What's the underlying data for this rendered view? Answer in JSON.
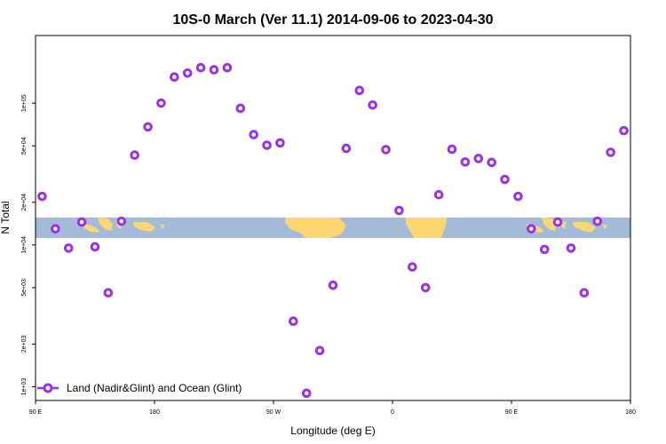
{
  "chart_data": {
    "type": "scatter",
    "title": "10S-0 March (Ver 11.1)   2014-09-06 to 2023-04-30",
    "xlabel": "Longitude (deg E)",
    "ylabel": "N Total",
    "x_scale": "linear",
    "y_scale": "log",
    "xlim": [
      90,
      540
    ],
    "ylim": [
      800,
      300000
    ],
    "x_ticks": [
      {
        "value": 90,
        "label": "90 E"
      },
      {
        "value": 180,
        "label": "180"
      },
      {
        "value": 270,
        "label": "90 W"
      },
      {
        "value": 360,
        "label": "0"
      },
      {
        "value": 450,
        "label": "90 E"
      },
      {
        "value": 540,
        "label": "180"
      }
    ],
    "y_ticks": [
      {
        "value": 1000,
        "label": "1e+03"
      },
      {
        "value": 2000,
        "label": "2e+03"
      },
      {
        "value": 5000,
        "label": "5e+03"
      },
      {
        "value": 10000,
        "label": "1e+04"
      },
      {
        "value": 20000,
        "label": "2e+04"
      },
      {
        "value": 50000,
        "label": "5e+04"
      },
      {
        "value": 100000,
        "label": "1e+05"
      }
    ],
    "map_band": {
      "lat_min": -10,
      "lat_max": 0,
      "ocean_color": "#a4bad9",
      "land_color": "#fcd670"
    },
    "legend": {
      "position": "bottom-left",
      "label": "Land (Nadir&Glint) and Ocean (Glint)"
    },
    "series": [
      {
        "name": "Land (Nadir&Glint) and Ocean (Glint)",
        "color": "#9b30e8",
        "marker": "open-circle",
        "x": [
          95,
          105,
          115,
          125,
          135,
          145,
          155,
          165,
          175,
          185,
          195,
          205,
          215,
          225,
          235,
          245,
          255,
          265,
          275,
          285,
          295,
          305,
          315,
          325,
          335,
          345,
          355,
          365,
          375,
          385,
          395,
          405,
          415,
          425,
          435,
          445,
          455,
          465,
          475,
          485,
          495,
          505,
          515,
          525,
          535
        ],
        "y": [
          22000,
          13000,
          9500,
          14500,
          9700,
          4600,
          14700,
          43000,
          68000,
          100000,
          153000,
          163000,
          178000,
          172000,
          178000,
          92000,
          60000,
          50500,
          52500,
          2900,
          900,
          1800,
          5200,
          48000,
          123000,
          97000,
          47000,
          17500,
          7000,
          5000,
          22600,
          47300,
          38500,
          40700,
          38200,
          29000,
          22000,
          13000,
          9300,
          14500,
          9500,
          4600,
          14700,
          45000,
          64000
        ]
      }
    ]
  }
}
